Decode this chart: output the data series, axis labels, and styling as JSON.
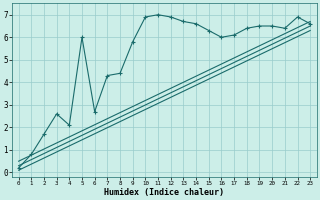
{
  "title": "",
  "xlabel": "Humidex (Indice chaleur)",
  "bg_color": "#cceee8",
  "line_color": "#1a6b6b",
  "xlim": [
    -0.5,
    23.5
  ],
  "ylim": [
    -0.2,
    7.5
  ],
  "xticks": [
    0,
    1,
    2,
    3,
    4,
    5,
    6,
    7,
    8,
    9,
    10,
    11,
    12,
    13,
    14,
    15,
    16,
    17,
    18,
    19,
    20,
    21,
    22,
    23
  ],
  "yticks": [
    0,
    1,
    2,
    3,
    4,
    5,
    6,
    7
  ],
  "main_line_x": [
    0,
    1,
    2,
    3,
    4,
    5,
    6,
    7,
    8,
    9,
    10,
    11,
    12,
    13,
    14,
    15,
    16,
    17,
    18,
    19,
    20,
    21,
    22,
    23
  ],
  "main_line_y": [
    0.2,
    0.8,
    1.7,
    2.6,
    2.1,
    6.0,
    2.7,
    4.3,
    4.4,
    5.8,
    6.9,
    7.0,
    6.9,
    6.7,
    6.6,
    6.3,
    6.0,
    6.1,
    6.4,
    6.5,
    6.5,
    6.4,
    6.9,
    6.6
  ],
  "trend1_x": [
    0,
    23
  ],
  "trend1_y": [
    0.1,
    6.3
  ],
  "trend2_x": [
    0,
    23
  ],
  "trend2_y": [
    0.3,
    6.5
  ],
  "trend3_x": [
    0,
    23
  ],
  "trend3_y": [
    0.5,
    6.7
  ],
  "grid_color": "#99cccc",
  "marker": "+"
}
